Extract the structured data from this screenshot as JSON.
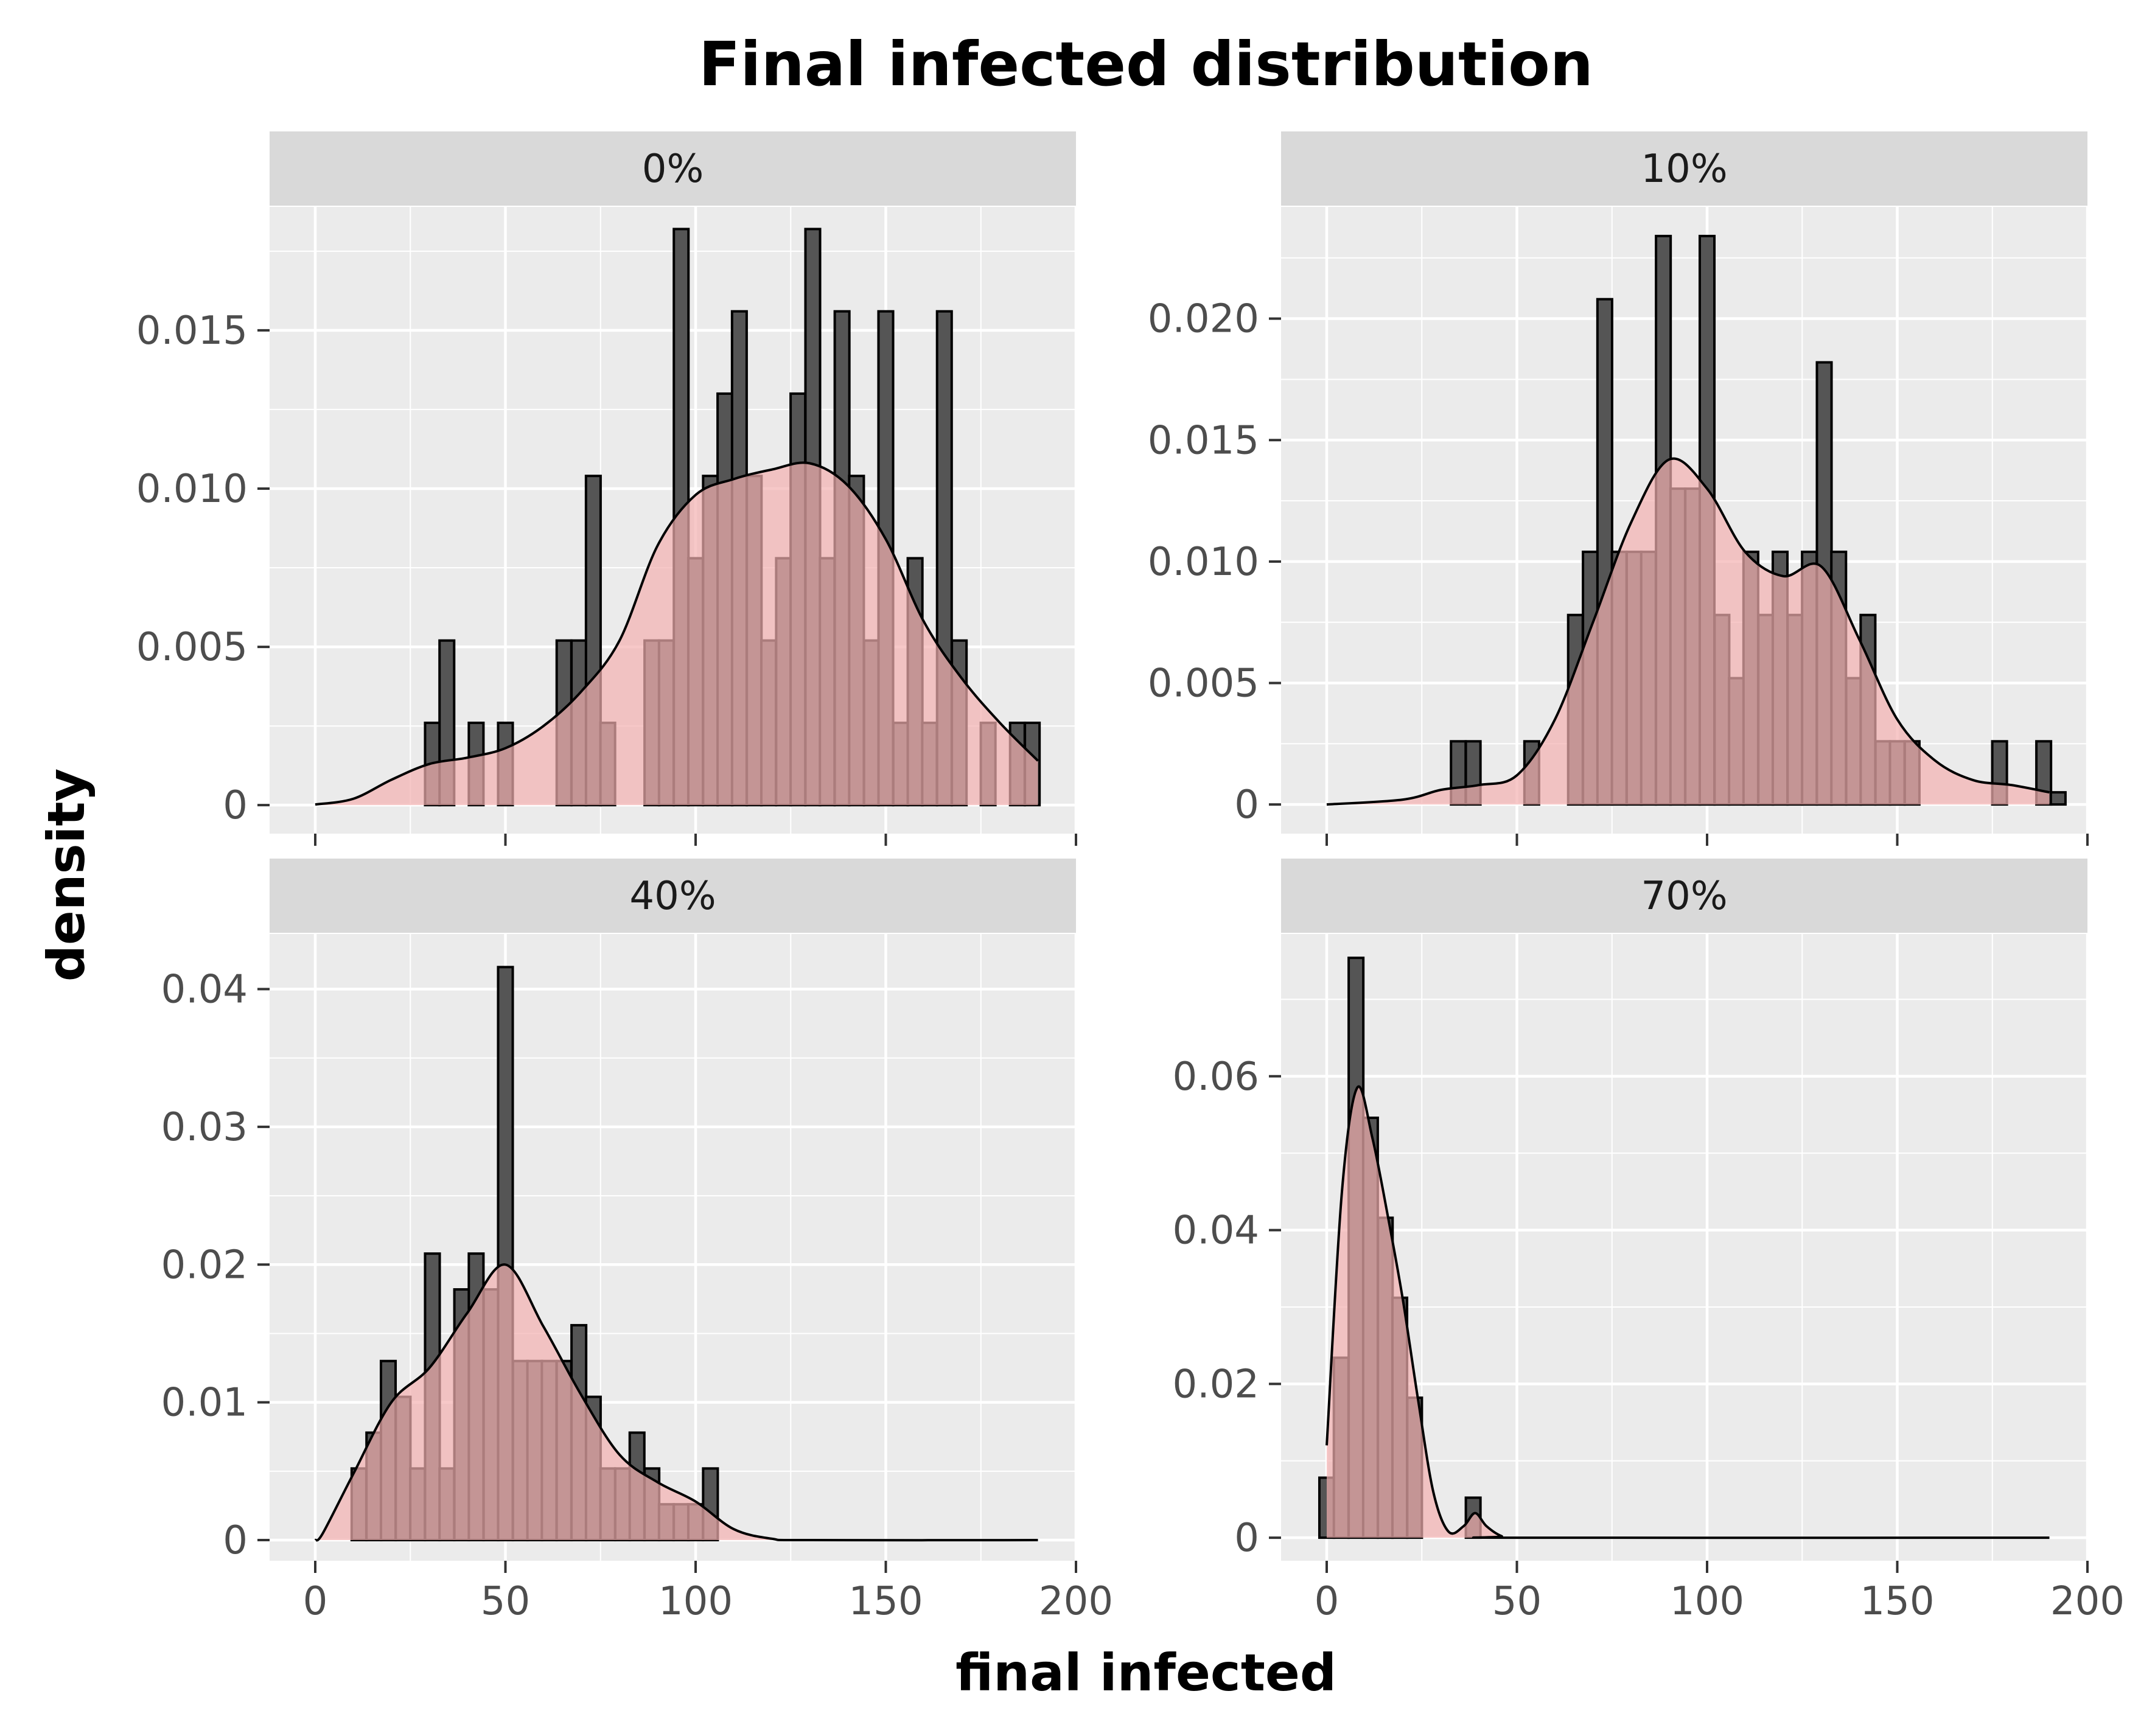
{
  "chart_data": {
    "type": "facet-histogram-density",
    "title": "Final infected distribution",
    "xlabel": "final infected",
    "ylabel": "density",
    "xlim": [
      -12,
      200
    ],
    "x_ticks": [
      0,
      50,
      100,
      150,
      200
    ],
    "bin_width": 3.85,
    "grid": true,
    "facets": [
      {
        "label": "0%",
        "ylim": [
          -0.0009,
          0.0189
        ],
        "y_ticks": [
          0,
          0.005,
          0.01,
          0.015
        ],
        "y_tick_labels": [
          "0",
          "0.005",
          "0.010",
          "0.015"
        ],
        "bars": [
          [
            30.8,
            0.0026
          ],
          [
            34.6,
            0.0052
          ],
          [
            42.3,
            0.0026
          ],
          [
            50,
            0.0026
          ],
          [
            65.4,
            0.0052
          ],
          [
            69.3,
            0.0052
          ],
          [
            73.1,
            0.0104
          ],
          [
            76.9,
            0.0026
          ],
          [
            88.5,
            0.0052
          ],
          [
            92.3,
            0.0052
          ],
          [
            96.2,
            0.0182
          ],
          [
            100,
            0.0078
          ],
          [
            103.9,
            0.0104
          ],
          [
            107.7,
            0.013
          ],
          [
            111.5,
            0.0156
          ],
          [
            115.4,
            0.0104
          ],
          [
            119.2,
            0.0052
          ],
          [
            123.1,
            0.0078
          ],
          [
            126.9,
            0.013
          ],
          [
            130.8,
            0.0182
          ],
          [
            134.6,
            0.0078
          ],
          [
            138.5,
            0.0156
          ],
          [
            142.3,
            0.0104
          ],
          [
            146.2,
            0.0052
          ],
          [
            150,
            0.0156
          ],
          [
            153.9,
            0.0026
          ],
          [
            157.7,
            0.0078
          ],
          [
            161.5,
            0.0026
          ],
          [
            165.4,
            0.0156
          ],
          [
            169.3,
            0.0052
          ],
          [
            176.9,
            0.0026
          ],
          [
            184.6,
            0.0026
          ],
          [
            188.5,
            0.0026
          ]
        ],
        "density": [
          [
            0,
            2e-05
          ],
          [
            10,
            0.0002
          ],
          [
            20,
            0.0008
          ],
          [
            30,
            0.0013
          ],
          [
            40,
            0.0015
          ],
          [
            50,
            0.0018
          ],
          [
            60,
            0.0025
          ],
          [
            70,
            0.0036
          ],
          [
            80,
            0.0052
          ],
          [
            90,
            0.0082
          ],
          [
            100,
            0.0098
          ],
          [
            110,
            0.0103
          ],
          [
            120,
            0.0106
          ],
          [
            130,
            0.0108
          ],
          [
            140,
            0.0101
          ],
          [
            150,
            0.0084
          ],
          [
            160,
            0.0058
          ],
          [
            170,
            0.004
          ],
          [
            180,
            0.0026
          ],
          [
            190,
            0.0014
          ]
        ]
      },
      {
        "label": "10%",
        "ylim": [
          -0.0012,
          0.0246
        ],
        "y_ticks": [
          0,
          0.005,
          0.01,
          0.015,
          0.02
        ],
        "y_tick_labels": [
          "0",
          "0.005",
          "0.010",
          "0.015",
          "0.020"
        ],
        "bars": [
          [
            34.6,
            0.0026
          ],
          [
            38.5,
            0.0026
          ],
          [
            53.9,
            0.0026
          ],
          [
            65.4,
            0.0078
          ],
          [
            69.3,
            0.0104
          ],
          [
            73.1,
            0.0208
          ],
          [
            76.9,
            0.0104
          ],
          [
            80.8,
            0.0104
          ],
          [
            84.6,
            0.0104
          ],
          [
            88.5,
            0.0234
          ],
          [
            92.3,
            0.013
          ],
          [
            96.2,
            0.013
          ],
          [
            100,
            0.0234
          ],
          [
            103.9,
            0.0078
          ],
          [
            107.7,
            0.0052
          ],
          [
            111.5,
            0.0104
          ],
          [
            115.4,
            0.0078
          ],
          [
            119.2,
            0.0104
          ],
          [
            123.1,
            0.0078
          ],
          [
            126.9,
            0.0104
          ],
          [
            130.8,
            0.0182
          ],
          [
            134.6,
            0.0104
          ],
          [
            138.5,
            0.0052
          ],
          [
            142.3,
            0.0078
          ],
          [
            146.2,
            0.0026
          ],
          [
            150,
            0.0026
          ],
          [
            153.9,
            0.0026
          ],
          [
            176.9,
            0.0026
          ],
          [
            188.5,
            0.0026
          ],
          [
            192.3,
            0.0005
          ]
        ],
        "density": [
          [
            0,
            0
          ],
          [
            20,
            0.0002
          ],
          [
            30,
            0.0006
          ],
          [
            40,
            0.0008
          ],
          [
            50,
            0.0012
          ],
          [
            60,
            0.0035
          ],
          [
            70,
            0.0075
          ],
          [
            80,
            0.0116
          ],
          [
            90,
            0.0142
          ],
          [
            100,
            0.013
          ],
          [
            110,
            0.0104
          ],
          [
            120,
            0.0094
          ],
          [
            130,
            0.0098
          ],
          [
            140,
            0.0068
          ],
          [
            150,
            0.0035
          ],
          [
            160,
            0.0018
          ],
          [
            170,
            0.001
          ],
          [
            180,
            0.0008
          ],
          [
            190,
            0.0005
          ]
        ]
      },
      {
        "label": "40%",
        "ylim": [
          -0.0015,
          0.044
        ],
        "y_ticks": [
          0,
          0.01,
          0.02,
          0.03,
          0.04
        ],
        "y_tick_labels": [
          "0",
          "0.01",
          "0.02",
          "0.03",
          "0.04"
        ],
        "bars": [
          [
            11.5,
            0.0052
          ],
          [
            15.4,
            0.0078
          ],
          [
            19.2,
            0.013
          ],
          [
            23.1,
            0.0104
          ],
          [
            26.9,
            0.0052
          ],
          [
            30.8,
            0.0208
          ],
          [
            34.6,
            0.0052
          ],
          [
            38.5,
            0.0182
          ],
          [
            42.3,
            0.0208
          ],
          [
            46.2,
            0.0182
          ],
          [
            50,
            0.0416
          ],
          [
            53.9,
            0.013
          ],
          [
            57.7,
            0.013
          ],
          [
            61.5,
            0.013
          ],
          [
            65.4,
            0.013
          ],
          [
            69.3,
            0.0156
          ],
          [
            73.1,
            0.0104
          ],
          [
            76.9,
            0.0052
          ],
          [
            80.8,
            0.0052
          ],
          [
            84.6,
            0.0078
          ],
          [
            88.5,
            0.0052
          ],
          [
            92.3,
            0.0026
          ],
          [
            96.2,
            0.0026
          ],
          [
            100,
            0.0026
          ],
          [
            103.9,
            0.0052
          ]
        ],
        "density": [
          [
            0,
            0
          ],
          [
            2,
            0.0005
          ],
          [
            10,
            0.0048
          ],
          [
            20,
            0.01
          ],
          [
            30,
            0.0125
          ],
          [
            40,
            0.0165
          ],
          [
            50,
            0.02
          ],
          [
            60,
            0.0155
          ],
          [
            70,
            0.0105
          ],
          [
            80,
            0.0062
          ],
          [
            90,
            0.0042
          ],
          [
            100,
            0.0028
          ],
          [
            110,
            0.0008
          ],
          [
            120,
            0.0001
          ],
          [
            130,
            0
          ],
          [
            190,
            0
          ]
        ]
      },
      {
        "label": "70%",
        "ylim": [
          -0.003,
          0.0785
        ],
        "y_ticks": [
          0,
          0.02,
          0.04,
          0.06
        ],
        "y_tick_labels": [
          "0",
          "0.02",
          "0.04",
          "0.06"
        ],
        "bars": [
          [
            0,
            0.0078
          ],
          [
            3.8,
            0.0234
          ],
          [
            7.7,
            0.0754
          ],
          [
            11.5,
            0.0546
          ],
          [
            15.4,
            0.0416
          ],
          [
            19.2,
            0.0312
          ],
          [
            23.1,
            0.0182
          ],
          [
            38.5,
            0.0052
          ]
        ],
        "density": [
          [
            0,
            0.012
          ],
          [
            4,
            0.045
          ],
          [
            8,
            0.0585
          ],
          [
            12,
            0.052
          ],
          [
            16,
            0.042
          ],
          [
            20,
            0.031
          ],
          [
            24,
            0.018
          ],
          [
            28,
            0.006
          ],
          [
            32,
            0.0008
          ],
          [
            36,
            0.0015
          ],
          [
            39,
            0.0032
          ],
          [
            42,
            0.0015
          ],
          [
            46,
            0.0002
          ],
          [
            50,
            0
          ],
          [
            190,
            0
          ]
        ]
      }
    ]
  },
  "colors": {
    "panel_bg": "#EBEBEB",
    "strip_bg": "#D9D9D9",
    "grid": "#FFFFFF",
    "bar_fill": "#555555",
    "density_fill": "#F4B0B0",
    "density_alpha": 0.7,
    "outline": "#000000"
  }
}
